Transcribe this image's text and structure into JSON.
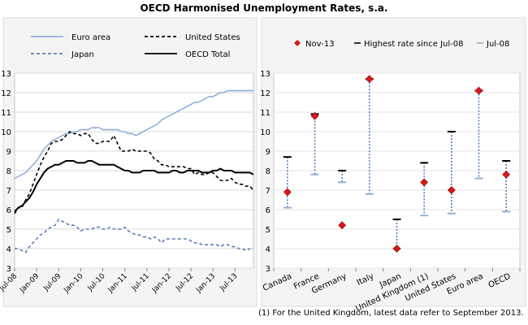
{
  "figure": {
    "title": "OECD Harmonised Unemployment Rates, s.a.",
    "footnote": "(1) For the United Kingdom, latest data refer to September 2013."
  },
  "chart_data": [
    {
      "type": "line",
      "ylim": [
        3,
        13
      ],
      "yticks": [
        3,
        4,
        5,
        6,
        7,
        8,
        9,
        10,
        11,
        12,
        13
      ],
      "xticks": [
        "Jul-08",
        "Jan-09",
        "Jul-09",
        "Jan-10",
        "Jul-10",
        "Jan-11",
        "Jul-11",
        "Jan-12",
        "Jul-12",
        "Jan-13",
        "Jul-13"
      ],
      "x_start": "Jul-08",
      "grid": true,
      "legend_position": "top",
      "series": [
        {
          "name": "Euro area",
          "color": "#8fb0d9",
          "dash": "solid",
          "values": [
            7.6,
            7.7,
            7.8,
            7.9,
            8.1,
            8.3,
            8.5,
            8.8,
            9.1,
            9.3,
            9.5,
            9.6,
            9.7,
            9.8,
            9.9,
            9.9,
            10.0,
            10.0,
            10.1,
            10.1,
            10.1,
            10.2,
            10.2,
            10.2,
            10.1,
            10.1,
            10.1,
            10.1,
            10.1,
            10.0,
            10.0,
            9.9,
            9.9,
            9.8,
            9.9,
            10.0,
            10.1,
            10.2,
            10.3,
            10.4,
            10.6,
            10.7,
            10.8,
            10.9,
            11.0,
            11.1,
            11.2,
            11.3,
            11.4,
            11.5,
            11.5,
            11.6,
            11.7,
            11.8,
            11.8,
            11.9,
            12.0,
            12.0,
            12.1,
            12.1,
            12.1,
            12.1,
            12.1,
            12.1,
            12.1,
            12.1
          ]
        },
        {
          "name": "United States",
          "color": "#000000",
          "dash": "dashed",
          "values": [
            5.8,
            6.1,
            6.1,
            6.5,
            6.8,
            7.3,
            7.8,
            8.3,
            8.7,
            9.0,
            9.4,
            9.5,
            9.5,
            9.6,
            9.8,
            10.0,
            9.9,
            9.9,
            9.8,
            9.9,
            9.9,
            9.6,
            9.4,
            9.4,
            9.5,
            9.5,
            9.5,
            9.8,
            9.4,
            9.0,
            9.0,
            9.0,
            9.1,
            9.0,
            9.0,
            9.0,
            9.0,
            8.9,
            8.6,
            8.5,
            8.3,
            8.3,
            8.2,
            8.2,
            8.2,
            8.2,
            8.2,
            8.1,
            8.1,
            7.8,
            7.9,
            7.8,
            7.8,
            7.9,
            7.9,
            7.7,
            7.5,
            7.5,
            7.5,
            7.6,
            7.4,
            7.3,
            7.3,
            7.2,
            7.2,
            7.0
          ]
        },
        {
          "name": "Japan",
          "color": "#5a7fb5",
          "dash": "dashed",
          "values": [
            4.0,
            4.0,
            3.9,
            3.8,
            4.1,
            4.3,
            4.5,
            4.7,
            4.8,
            5.0,
            5.1,
            5.2,
            5.5,
            5.4,
            5.3,
            5.2,
            5.2,
            5.1,
            4.9,
            5.0,
            5.0,
            5.0,
            5.1,
            5.1,
            5.0,
            5.0,
            5.1,
            5.0,
            5.0,
            5.0,
            5.1,
            4.9,
            4.8,
            4.7,
            4.7,
            4.6,
            4.6,
            4.5,
            4.6,
            4.5,
            4.3,
            4.5,
            4.5,
            4.5,
            4.5,
            4.5,
            4.5,
            4.5,
            4.4,
            4.3,
            4.3,
            4.2,
            4.2,
            4.2,
            4.2,
            4.2,
            4.1,
            4.2,
            4.2,
            4.1,
            4.1,
            4.0,
            4.0,
            3.9,
            4.0,
            4.0
          ]
        },
        {
          "name": "OECD Total",
          "color": "#000000",
          "dash": "solid",
          "values": [
            5.9,
            6.1,
            6.2,
            6.4,
            6.6,
            6.9,
            7.3,
            7.6,
            7.9,
            8.1,
            8.2,
            8.3,
            8.3,
            8.4,
            8.5,
            8.5,
            8.5,
            8.4,
            8.4,
            8.4,
            8.5,
            8.5,
            8.4,
            8.3,
            8.3,
            8.3,
            8.3,
            8.3,
            8.2,
            8.1,
            8.0,
            8.0,
            7.9,
            7.9,
            7.9,
            8.0,
            8.0,
            8.0,
            8.0,
            7.9,
            7.9,
            7.9,
            7.9,
            8.0,
            8.0,
            7.9,
            7.9,
            8.0,
            8.0,
            8.0,
            8.0,
            7.9,
            7.9,
            7.9,
            8.0,
            8.0,
            8.1,
            8.0,
            8.0,
            8.0,
            7.9,
            7.9,
            7.9,
            7.9,
            7.9,
            7.8
          ]
        }
      ]
    },
    {
      "type": "range",
      "ylim": [
        3,
        13
      ],
      "yticks": [
        3,
        4,
        5,
        6,
        7,
        8,
        9,
        10,
        11,
        12,
        13
      ],
      "categories": [
        "Canada",
        "France",
        "Germany",
        "Italy",
        "Japan",
        "United Kingdom (1)",
        "United States",
        "Euro area",
        "OECD"
      ],
      "legend_position": "top",
      "legend": {
        "nov13": "Nov-13",
        "highest": "Highest rate since Jul-08",
        "jul08": "Jul-08"
      },
      "colors": {
        "nov13": "#d7191c",
        "highest": "#000000",
        "jul08": "#8fb0d9",
        "range": "#5a7fb5"
      },
      "nov13": [
        6.9,
        10.8,
        5.2,
        12.7,
        4.0,
        7.4,
        7.0,
        12.1,
        7.8
      ],
      "highest": [
        8.7,
        10.9,
        8.0,
        12.7,
        5.5,
        8.4,
        10.0,
        12.1,
        8.5
      ],
      "jul08": [
        6.1,
        7.8,
        7.4,
        6.8,
        4.0,
        5.7,
        5.8,
        7.6,
        5.9
      ]
    }
  ]
}
